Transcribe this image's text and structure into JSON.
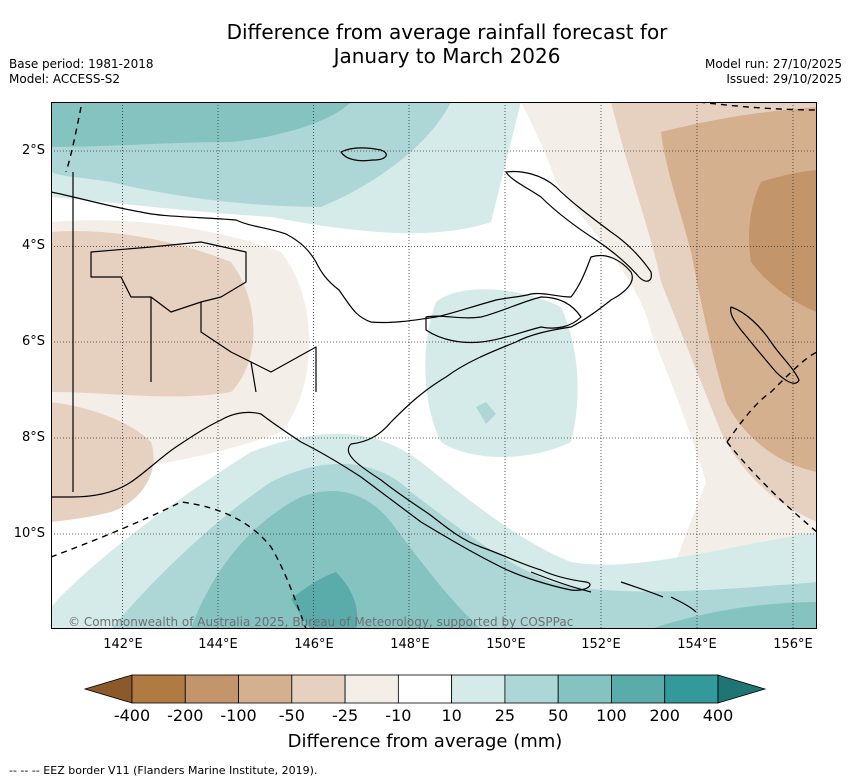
{
  "title_line1": "Difference from average rainfall forecast for",
  "title_line2": "January to March 2026",
  "base_period": "Base period: 1981-2018",
  "model": "Model: ACCESS-S2",
  "model_run": "Model run: 27/10/2025",
  "issued": "Issued: 29/10/2025",
  "lat_labels": [
    "2°S",
    "4°S",
    "6°S",
    "8°S",
    "10°S"
  ],
  "lon_labels": [
    "142°E",
    "144°E",
    "146°E",
    "148°E",
    "150°E",
    "152°E",
    "154°E",
    "156°E"
  ],
  "copyright": "© Commonwealth of Australia 2025, Bureau of Meteorology, supported by COSPPac",
  "colorbar": {
    "ticks": [
      "-400",
      "-200",
      "-100",
      "-50",
      "-25",
      "-10",
      "10",
      "25",
      "50",
      "100",
      "200",
      "400"
    ],
    "colors": [
      "#8c5a2a",
      "#b07a43",
      "#c2956a",
      "#d4b08f",
      "#e6d1c0",
      "#f3efe8",
      "#ffffff",
      "#d5ebe9",
      "#add7d6",
      "#85c3c1",
      "#5aacaa",
      "#33999a",
      "#1f7474"
    ],
    "title": "Difference from average (mm)"
  },
  "legend_text": "--  --  -- EEZ border V11 (Flanders Marine Institute, 2019)."
}
